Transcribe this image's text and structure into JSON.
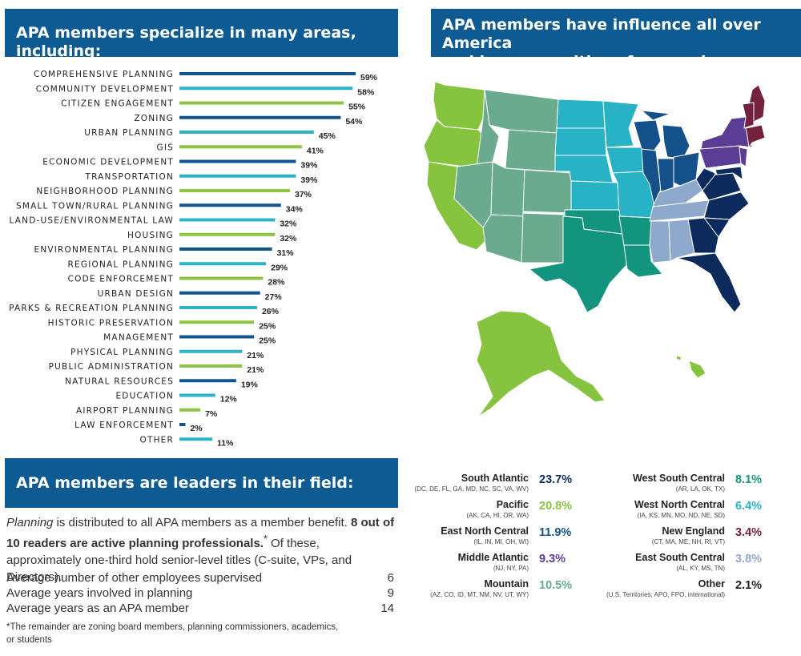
{
  "headers": {
    "specialize": "APA members specialize in many areas, including:",
    "influence_line1": "APA members have influence all over America",
    "influence_line2": "and in communities of every size:",
    "leaders": "APA members are leaders in their field:"
  },
  "chart_data": {
    "type": "bar",
    "orientation": "horizontal",
    "unit": "%",
    "categories": [
      "COMPREHENSIVE PLANNING",
      "COMMUNITY DEVELOPMENT",
      "CITIZEN ENGAGEMENT",
      "ZONING",
      "URBAN PLANNING",
      "GIS",
      "ECONOMIC DEVELOPMENT",
      "TRANSPORTATION",
      "NEIGHBORHOOD PLANNING",
      "SMALL TOWN/RURAL PLANNING",
      "LAND-USE/ENVIRONMENTAL LAW",
      "HOUSING",
      "ENVIRONMENTAL PLANNING",
      "REGIONAL PLANNING",
      "CODE ENFORCEMENT",
      "URBAN DESIGN",
      "PARKS & RECREATION PLANNING",
      "HISTORIC PRESERVATION",
      "MANAGEMENT",
      "PHYSICAL PLANNING",
      "PUBLIC ADMINISTRATION",
      "NATURAL RESOURCES",
      "EDUCATION",
      "AIRPORT PLANNING",
      "LAW ENFORCEMENT",
      "OTHER"
    ],
    "values": [
      59,
      58,
      55,
      54,
      45,
      41,
      39,
      39,
      37,
      34,
      32,
      32,
      31,
      29,
      28,
      27,
      26,
      25,
      25,
      21,
      21,
      19,
      12,
      7,
      2,
      11
    ],
    "labels": [
      "59%",
      "58%",
      "55%",
      "54%",
      "45%",
      "41%",
      "39%",
      "39%",
      "37%",
      "34%",
      "32%",
      "32%",
      "31%",
      "29%",
      "28%",
      "27%",
      "26%",
      "25%",
      "25%",
      "21%",
      "21%",
      "19%",
      "12%",
      "7%",
      "2%",
      "11%"
    ],
    "colors": [
      "#12558d",
      "#2bb3c8",
      "#8cc443",
      "#12558d",
      "#2bb3c8",
      "#8cc443",
      "#12558d",
      "#2bb3c8",
      "#8cc443",
      "#12558d",
      "#2bb3c8",
      "#8cc443",
      "#12558d",
      "#2bb3c8",
      "#8cc443",
      "#12558d",
      "#2bb3c8",
      "#8cc443",
      "#12558d",
      "#2bb3c8",
      "#8cc443",
      "#12558d",
      "#2bb3c8",
      "#8cc443",
      "#12558d",
      "#2bb3c8"
    ],
    "xlim": [
      0,
      59
    ]
  },
  "leaders": {
    "para_italic": "Planning",
    "para_1": " is distributed to all APA members as a member benefit. ",
    "para_bold": "8 out of 10 readers are active planning professionals.",
    "para_sup": "*",
    "para_2": " Of these, approximately one-third hold senior-level titles (C-suite, VPs, and Directors).",
    "stats": [
      {
        "label": "Average number of other employees supervised",
        "value": "6"
      },
      {
        "label": "Average years involved in planning",
        "value": "9"
      },
      {
        "label": "Average years as an APA member",
        "value": "14"
      }
    ],
    "footnote": "*The remainder are zoning board members, planning commissioners, academics, or students"
  },
  "regions_col_a": [
    {
      "name": "South Atlantic",
      "states": "(DC, DE, FL, GA, MD, NC, SC, VA, WV)",
      "pct": "23.7%",
      "color": "#0c2b5c"
    },
    {
      "name": "Pacific",
      "states": "(AK, CA, HI, OR, WA)",
      "pct": "20.8%",
      "color": "#86c440"
    },
    {
      "name": "East North Central",
      "states": "(IL, IN, MI, OH, WI)",
      "pct": "11.9%",
      "color": "#14518a"
    },
    {
      "name": "Middle Atlantic",
      "states": "(NJ, NY, PA)",
      "pct": "9.3%",
      "color": "#5c3d96"
    },
    {
      "name": "Mountain",
      "states": "(AZ, CO, ID, MT, NM, NV, UT, WY)",
      "pct": "10.5%",
      "color": "#6aab8f"
    }
  ],
  "regions_col_b": [
    {
      "name": "West South Central",
      "states": "(AR, LA, OK, TX)",
      "pct": "8.1%",
      "color": "#12947f"
    },
    {
      "name": "West North Central",
      "states": "(IA, KS, MN, MO, ND, NE, SD)",
      "pct": "6.4%",
      "color": "#27b2c6"
    },
    {
      "name": "New England",
      "states": "(CT, MA, ME, NH, RI, VT)",
      "pct": "3.4%",
      "color": "#74213f"
    },
    {
      "name": "East South Central",
      "states": "(AL, KY, MS, TN)",
      "pct": "3.8%",
      "color": "#8ea9cc"
    },
    {
      "name": "Other",
      "states": "(U.S. Territories, APO, FPO, international)",
      "pct": "2.1%",
      "color": "#222222"
    }
  ]
}
